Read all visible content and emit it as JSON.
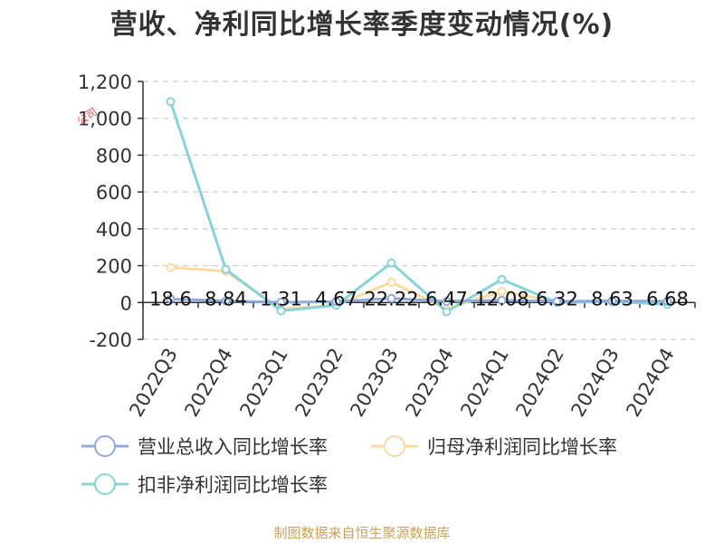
{
  "chart_data": {
    "type": "line",
    "title": "营收、净利同比增长率季度变动情况(%)",
    "categories": [
      "2022Q3",
      "2022Q4",
      "2023Q1",
      "2023Q2",
      "2023Q3",
      "2023Q4",
      "2024Q1",
      "2024Q2",
      "2024Q3",
      "2024Q4"
    ],
    "ylim": [
      -200,
      1200
    ],
    "yticks": [
      -200,
      0,
      200,
      400,
      600,
      800,
      "1,000",
      "1,200"
    ],
    "ytick_values": [
      -200,
      0,
      200,
      400,
      600,
      800,
      1000,
      1200
    ],
    "grid": true,
    "legend_position": "bottom",
    "series": [
      {
        "name": "营业总收入同比增长率",
        "color": "#8eaadb",
        "values": [
          18.6,
          8.84,
          1.31,
          4.67,
          22.22,
          6.47,
          12.08,
          6.32,
          8.63,
          6.68
        ],
        "labels": [
          "18.6",
          "8.84",
          "1.31",
          "4.67",
          "22.22",
          "6.47",
          "12.08",
          "6.32",
          "8.63",
          "6.68"
        ]
      },
      {
        "name": "归母净利润同比增长率",
        "color": "#fcd9a0",
        "values": [
          190,
          170,
          -35,
          -15,
          110,
          -35,
          60,
          5,
          5,
          -5
        ]
      },
      {
        "name": "扣非净利润同比增长率",
        "color": "#86d3d8",
        "values": [
          1090,
          180,
          -45,
          -15,
          215,
          -50,
          125,
          0,
          5,
          -10
        ]
      }
    ]
  },
  "footer": {
    "source": "制图数据来自恒生聚源数据库"
  },
  "watermark": "公司"
}
